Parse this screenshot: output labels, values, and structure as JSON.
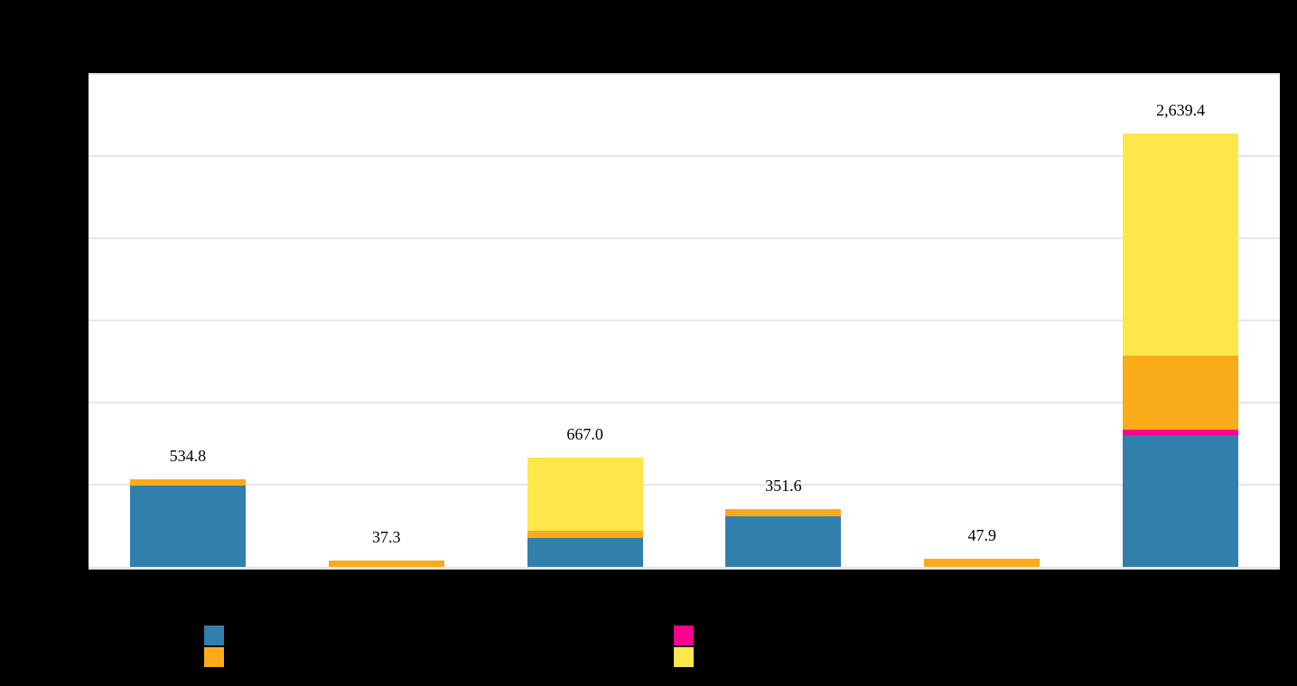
{
  "chart_data": {
    "type": "bar",
    "stacked": true,
    "title": "",
    "xlabel": "",
    "ylabel": "",
    "ylim": [
      0,
      3000
    ],
    "yticks": [
      0,
      500,
      1000,
      1500,
      2000,
      2500,
      3000
    ],
    "grid": true,
    "legend_position": "bottom",
    "categories": [
      "",
      "",
      "",
      "",
      "",
      ""
    ],
    "series": [
      {
        "name": "",
        "color": "#317fac",
        "values": [
          495,
          0,
          176,
          308,
          0,
          802
        ]
      },
      {
        "name": "",
        "color": "#ff008c",
        "values": [
          0,
          0,
          0,
          0,
          0,
          33
        ]
      },
      {
        "name": "",
        "color": "#f9ab1a",
        "values": [
          39.8,
          37.3,
          44,
          43.6,
          47.9,
          451
        ]
      },
      {
        "name": "",
        "color": "#ffe64b",
        "values": [
          0,
          0,
          447,
          0,
          0,
          1353.4
        ]
      }
    ],
    "totals": [
      534.8,
      37.3,
      667.0,
      351.6,
      47.9,
      2639.4
    ],
    "total_labels": [
      "534.8",
      "37.3",
      "667.0",
      "351.6",
      "47.9",
      "2,639.4"
    ]
  },
  "colors": {
    "background": "#000000",
    "plot_background": "#ffffff",
    "gridline": "#e6e6e6",
    "blue": "#317fac",
    "pink": "#ff008c",
    "orange": "#f9ab1a",
    "yellow": "#ffe64b"
  },
  "legend": {
    "items": [
      {
        "label": "",
        "color": "#317fac"
      },
      {
        "label": "",
        "color": "#f9ab1a"
      },
      {
        "label": "",
        "color": "#ff008c"
      },
      {
        "label": "",
        "color": "#ffe64b"
      }
    ]
  }
}
